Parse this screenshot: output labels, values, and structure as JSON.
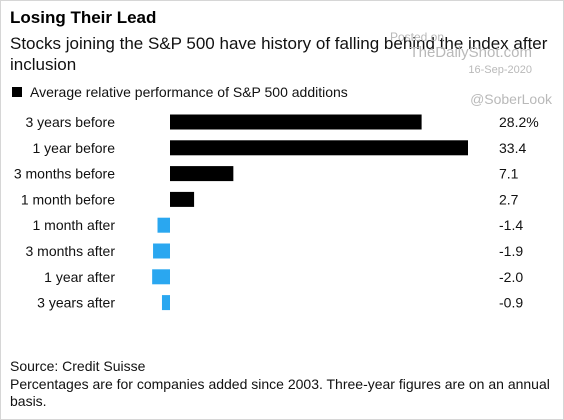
{
  "header": {
    "title": "Losing Their Lead",
    "subtitle": "Stocks joining the S&P 500 have history of falling behind the index after inclusion"
  },
  "watermark": {
    "posted": "Posted on",
    "site": "TheDailyShot.com",
    "date": "16-Sep-2020",
    "handle": "@SoberLook"
  },
  "colors": {
    "positive": "#000000",
    "negative": "#2aa7f0"
  },
  "chart_data": {
    "type": "bar",
    "orientation": "horizontal",
    "legend": "top-left",
    "grid": false,
    "categories": [
      "3 years before",
      "1 year before",
      "3 months before",
      "1 month before",
      "1 month after",
      "3 months after",
      "1 year after",
      "3 years after"
    ],
    "series": [
      {
        "name": "Average relative performance of S&P 500 additions",
        "values": [
          28.2,
          33.4,
          7.1,
          2.7,
          -1.4,
          -1.9,
          -2.0,
          -0.9
        ]
      }
    ],
    "value_labels": [
      "28.2%",
      "33.4",
      "7.1",
      "2.7",
      "-1.4",
      "-1.9",
      "-2.0",
      "-0.9"
    ],
    "xlim": [
      -2.0,
      33.4
    ]
  },
  "footer": {
    "source": "Source: Credit Suisse",
    "note": "Percentages are for companies added since 2003. Three-year figures are on an annual basis."
  }
}
